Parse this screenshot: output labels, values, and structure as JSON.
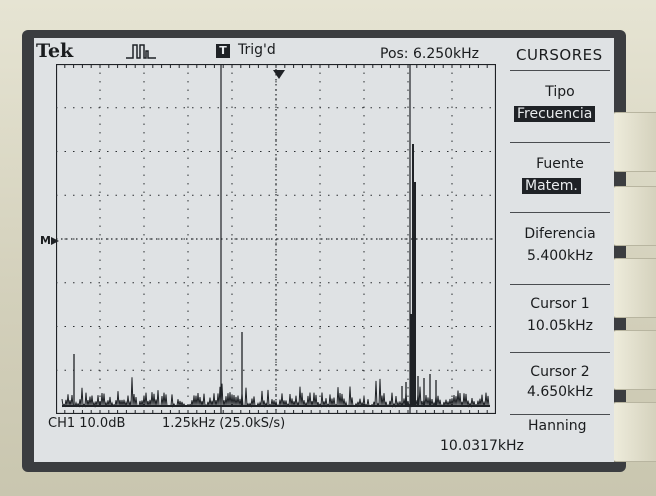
{
  "header": {
    "brand": "Tek",
    "trigger_badge": "T",
    "trigger_status": "Trig'd",
    "position": "Pos: 6.250kHz"
  },
  "menu": {
    "title": "CURSORES",
    "items": [
      {
        "label": "Tipo",
        "value": "Frecuencia",
        "highlighted": true
      },
      {
        "label": "Fuente",
        "value": "Matem.",
        "highlighted": true
      },
      {
        "label": "Diferencia",
        "value": "5.400kHz",
        "highlighted": false
      },
      {
        "label": "Cursor 1",
        "value": "10.05kHz",
        "highlighted": false
      },
      {
        "label": "Cursor 2",
        "value": "4.650kHz",
        "highlighted": false
      }
    ]
  },
  "footer": {
    "channel_scale": "CH1 10.0dB",
    "timebase": "1.25kHz (25.0kS/s)",
    "window": "Hanning",
    "frequency_readout": "10.0317kHz"
  },
  "markers": {
    "math_marker": "M"
  },
  "colors": {
    "screen_bg": "#dfe2e4",
    "trace": "#1f2226",
    "bezel": "#d9d6c2",
    "highlight_bg": "#1f2226"
  },
  "icons": {
    "trigger_type": "pulse-icon",
    "trigger_position": "triangle-down-icon",
    "math_level": "arrow-right-icon"
  }
}
